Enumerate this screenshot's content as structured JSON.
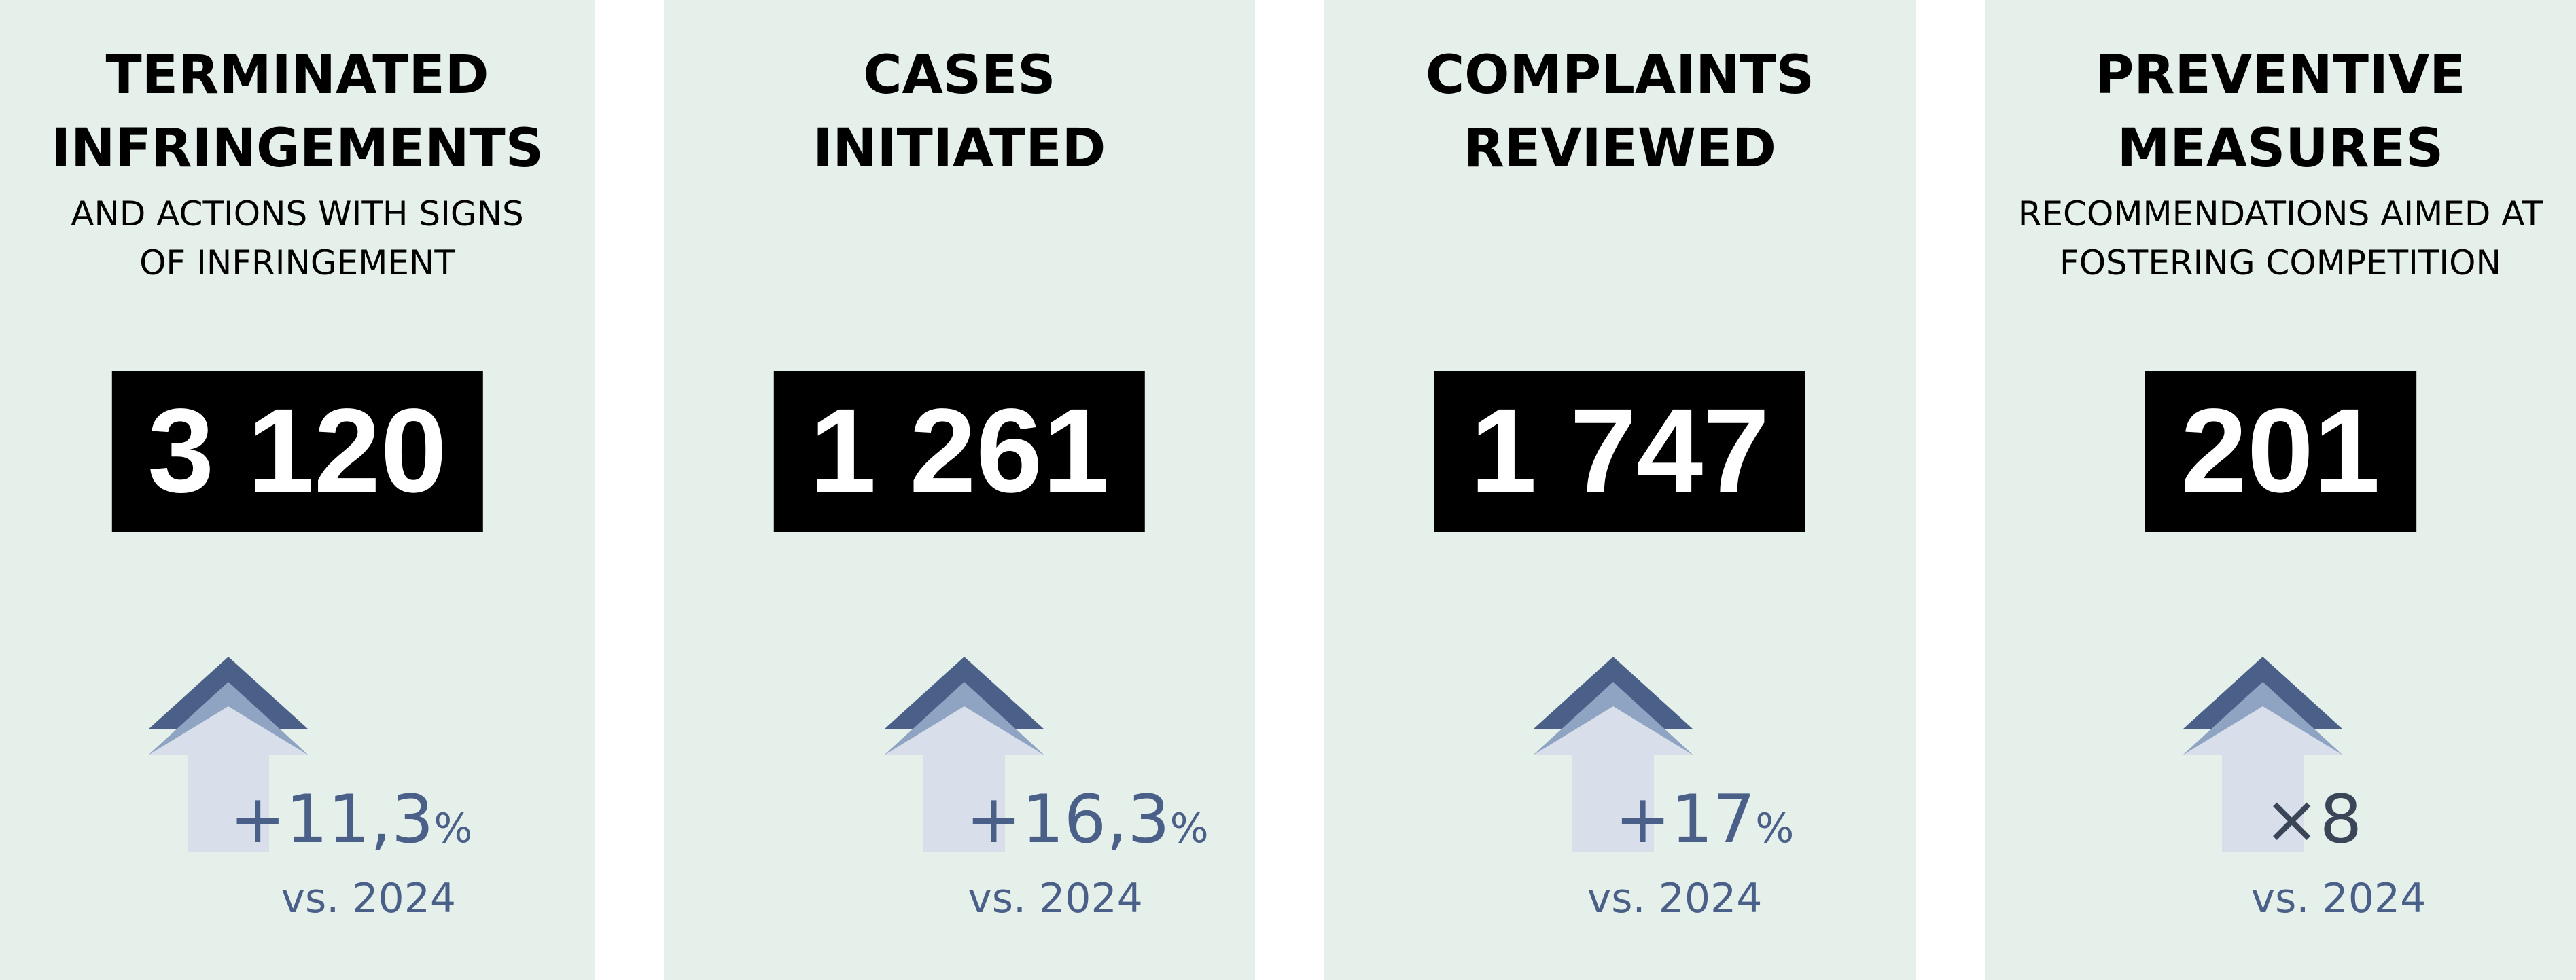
{
  "cards": [
    {
      "title": [
        "TERMINATED",
        "INFRINGEMENTS"
      ],
      "subtitle": [
        "AND ACTIONS WITH SIGNS",
        "OF INFRINGEMENT"
      ],
      "value": "3 120",
      "change": "+11,3",
      "change_unit": "%",
      "comparison": "vs. 2024"
    },
    {
      "title": [
        "CASES",
        "INITIATED"
      ],
      "subtitle": [],
      "value": "1 261",
      "change": "+16,3",
      "change_unit": "%",
      "comparison": "vs. 2024"
    },
    {
      "title": [
        "COMPLAINTS",
        "REVIEWED"
      ],
      "subtitle": [],
      "value": "1 747",
      "change": "+17",
      "change_unit": "%",
      "comparison": "vs. 2024"
    },
    {
      "title": [
        "PREVENTIVE",
        "MEASURES"
      ],
      "subtitle": [
        "RECOMMENDATIONS AIMED AT",
        "FOSTERING COMPETITION"
      ],
      "value": "201",
      "change": "×8",
      "change_unit": null,
      "comparison": "vs. 2024"
    }
  ]
}
